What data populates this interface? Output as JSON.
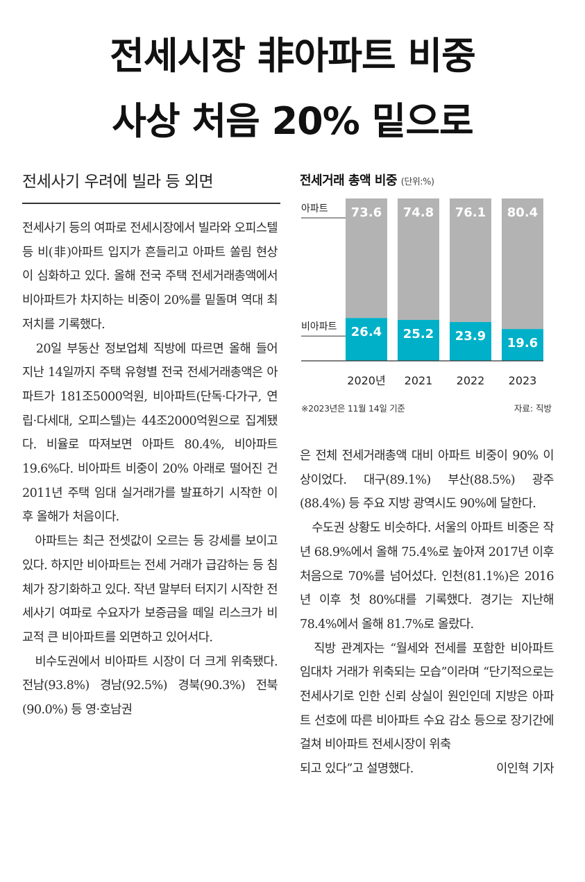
{
  "headline": {
    "line1": "전세시장 非아파트 비중",
    "line2": "사상 처음 20% 밑으로"
  },
  "subhead": "전세사기 우려에 빌라 등 외면",
  "body": {
    "left": "전세사기 등의 여파로 전세시장에서 빌라와 오피스텔 등 비(非)아파트 입지가 흔들리고 아파트 쏠림 현상이 심화하고 있다. 올해 전국 주택 전세거래총액에서 비아파트가 차지하는 비중이 20%를 밑돌며 역대 최저치를 기록했다.\n　20일 부동산 정보업체 직방에 따르면 올해 들어 지난 14일까지 주택 유형별 전국 전세거래총액은 아파트가 181조5000억원, 비아파트(단독·다가구, 연립·다세대, 오피스텔)는 44조2000억원으로 집계됐다. 비율로 따져보면 아파트 80.4%, 비아파트 19.6%다. 비아파트 비중이 20% 아래로 떨어진 건 2011년 주택 임대 실거래가를 발표하기 시작한 이후 올해가 처음이다.\n　아파트는 최근 전셋값이 오르는 등 강세를 보이고 있다. 하지만 비아파트는 전세 거래가 급감하는 등 침체가 장기화하고 있다. 작년 말부터 터지기 시작한 전세사기 여파로 수요자가 보증금을 떼일 리스크가 비교적 큰 비아파트를 외면하고 있어서다.\n　비수도권에서 비아파트 시장이 더 크게 위축됐다. 전남(93.8%) 경남(92.5%) 경북(90.3%) 전북(90.0%) 등 영·호남권",
    "right": "은 전체 전세거래총액 대비 아파트 비중이 90% 이상이었다. 대구(89.1%) 부산(88.5%) 광주(88.4%) 등 주요 지방 광역시도 90%에 달한다.\n　수도권 상황도 비슷하다. 서울의 아파트 비중은 작년 68.9%에서 올해 75.4%로 높아져 2017년 이후 처음으로 70%를 넘어섰다. 인천(81.1%)은 2016년 이후 첫 80%대를 기록했다. 경기는 지난해 78.4%에서 올해 81.7%로 올랐다.\n　직방 관계자는 “월세와 전세를 포함한 비아파트 임대차 거래가 위축되는 모습”이라며 “단기적으로는 전세사기로 인한 신뢰 상실이 원인인데 지방은 아파트 선호에 따른 비아파트 수요 감소 등으로 장기간에 걸쳐 비아파트 전세시장이 위축",
    "last_line": "되고 있다”고 설명했다.",
    "byline": "이인혁 기자"
  },
  "chart_header": {
    "title": "전세거래 총액 비중",
    "unit": "(단위:%)",
    "note": "※2023년은 11월 14일 기준",
    "source": "자료: 직방"
  },
  "chart_data": {
    "type": "bar",
    "stacked": true,
    "orientation": "vertical",
    "categories": [
      "2020년",
      "2021",
      "2022",
      "2023"
    ],
    "series": [
      {
        "name": "비아파트",
        "values": [
          26.4,
          25.2,
          23.9,
          19.6
        ],
        "color": "#00b0c8"
      },
      {
        "name": "아파트",
        "values": [
          73.6,
          74.8,
          76.1,
          80.4
        ],
        "color": "#b3b3b3"
      }
    ],
    "ylim": [
      0,
      100
    ],
    "grid": false,
    "legend": "left"
  }
}
